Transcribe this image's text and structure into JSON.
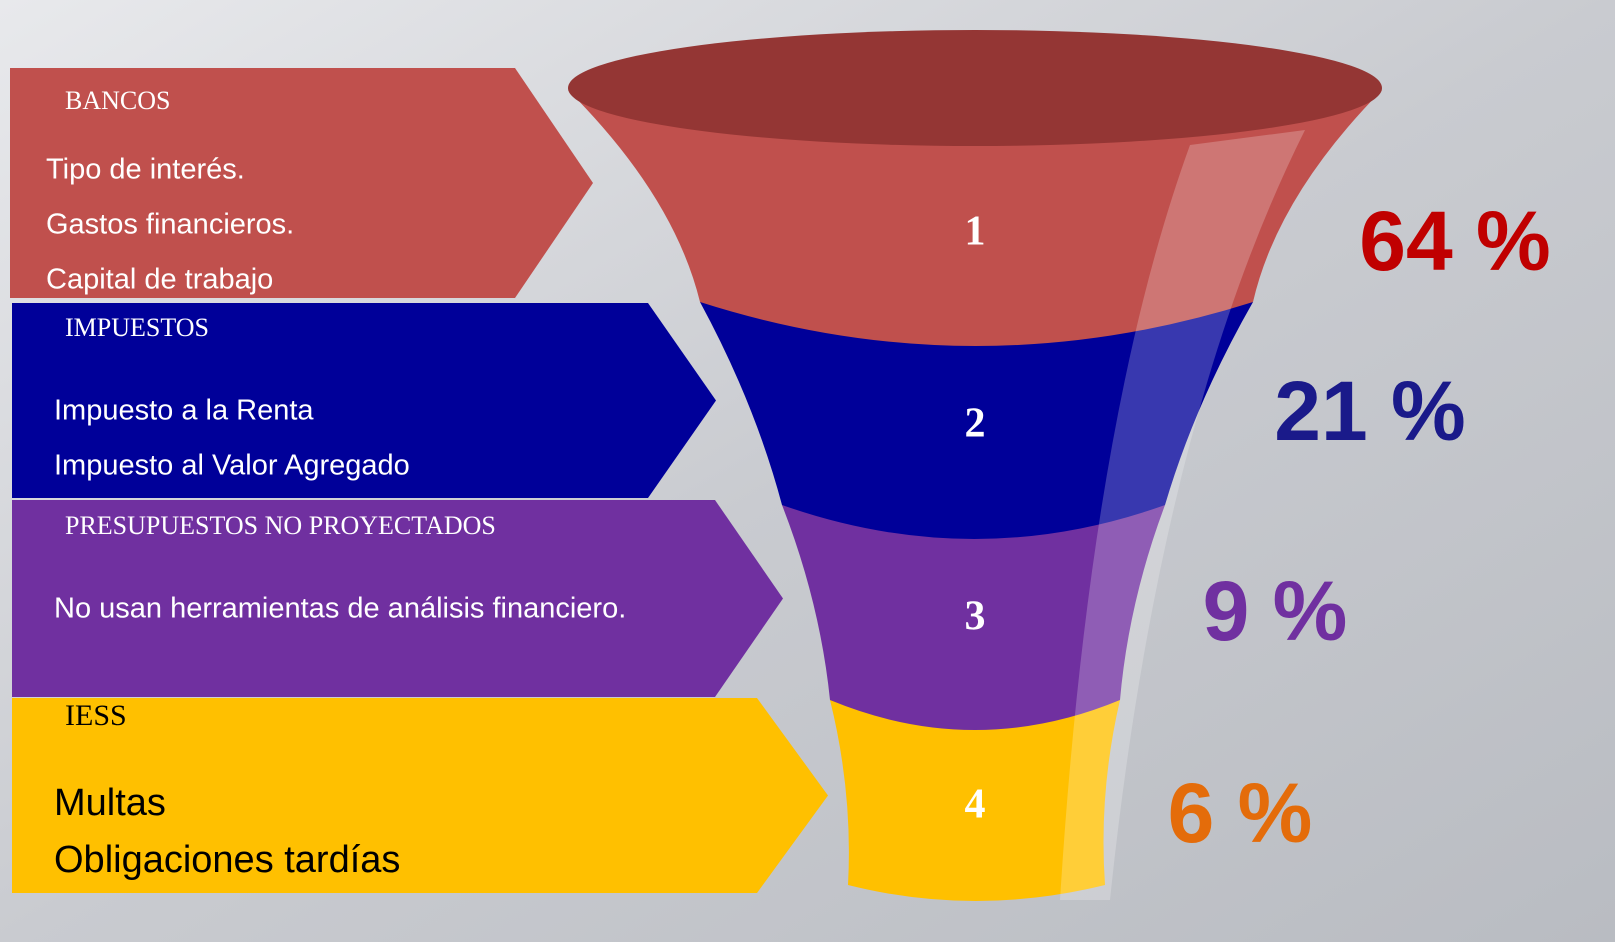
{
  "stages": [
    {
      "number": 1,
      "title": "BANCOS",
      "items": [
        "Tipo de interés.",
        "Gastos financieros.",
        "Capital de trabajo"
      ],
      "percent": "64 %"
    },
    {
      "number": 2,
      "title": "IMPUESTOS",
      "items": [
        "Impuesto a la Renta",
        "Impuesto al Valor Agregado"
      ],
      "percent": "21 %"
    },
    {
      "number": 3,
      "title": "PRESUPUESTOS NO PROYECTADOS",
      "items": [
        "No usan herramientas de análisis financiero."
      ],
      "percent": "9 %"
    },
    {
      "number": 4,
      "title": "IESS",
      "items": [
        "Multas",
        "Obligaciones tardías"
      ],
      "percent": "6 %"
    }
  ]
}
